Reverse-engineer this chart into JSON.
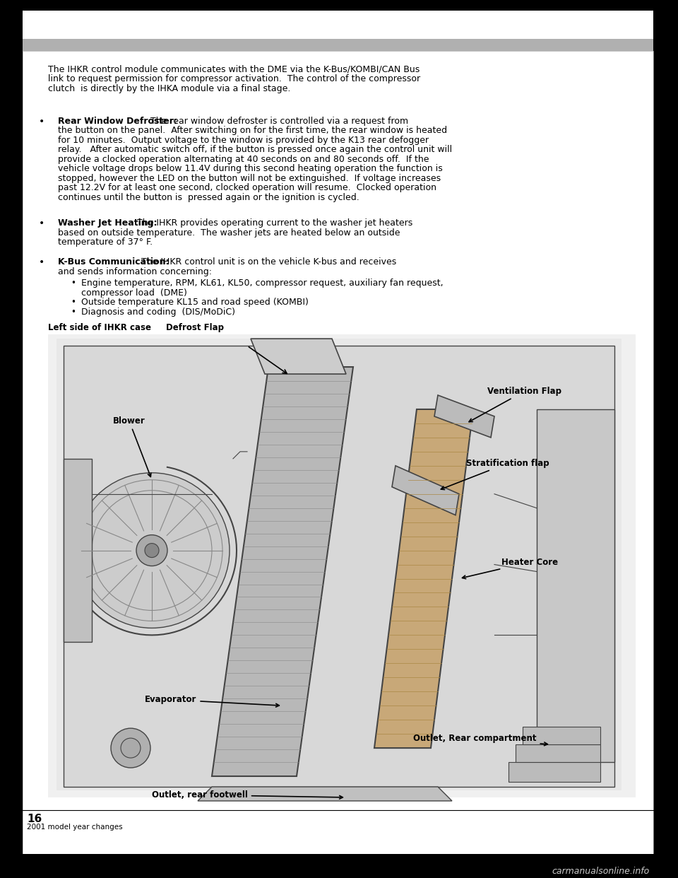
{
  "bg_color": "#000000",
  "page_bg": "#ffffff",
  "footer_page_number": "16",
  "footer_subtitle": "2001 model year changes",
  "watermark": "carmanualsonline.info",
  "intro_text": "The IHKR control module communicates with the DME via the K-Bus/KOMBI/CAN Bus\nlink to request permission for compressor activation.  The control of the compressor\nclutch  is directly by the IHKA module via a final stage.",
  "bullet1_title": "Rear Window Defroster:",
  "bullet1_body": " The rear window defroster is controlled via a request from\nthe button on the panel.  After switching on for the first time, the rear window is heated\nfor 10 minutes.  Output voltage to the window is provided by the K13 rear defogger\nrelay.   After automatic switch off, if the button is pressed once again the control unit will\nprovide a clocked operation alternating at 40 seconds on and 80 seconds off.  If the\nvehicle voltage drops below 11.4V during this second heating operation the function is\nstopped, however the LED on the button will not be extinguished.  If voltage increases\npast 12.2V for at least one second, clocked operation will resume.  Clocked operation\ncontinues until the button is  pressed again or the ignition is cycled.",
  "bullet2_title": "Washer Jet Heating:",
  "bullet2_body": " The IHKR provides operating current to the washer jet heaters\nbased on outside temperature.  The washer jets are heated below an outside\ntemperature of 37° F.",
  "bullet3_title": "K-Bus Communication:",
  "bullet3_body": " The IHKR control unit is on the vehicle K-bus and receives\nand sends information concerning:",
  "sub_bullet1": "Engine temperature, RPM, KL61, KL50, compressor request, auxiliary fan request,\ncompressor load  (DME)",
  "sub_bullet2": "Outside temperature KL15 and road speed (KOMBI)",
  "sub_bullet3": "Diagnosis and coding  (DIS/MoDiC)",
  "diagram_label_left": "Left side of IHKR case",
  "diagram_label_defrost": "Defrost Flap",
  "diagram_label_blower": "Blower",
  "diagram_label_vent": "Ventilation Flap",
  "diagram_label_strat": "Stratification flap",
  "diagram_label_heater": "Heater Core",
  "diagram_label_evap": "Evaporator",
  "diagram_label_outlet_rc": "Outlet, Rear compartment",
  "diagram_label_outlet_rf": "Outlet, rear footwell"
}
